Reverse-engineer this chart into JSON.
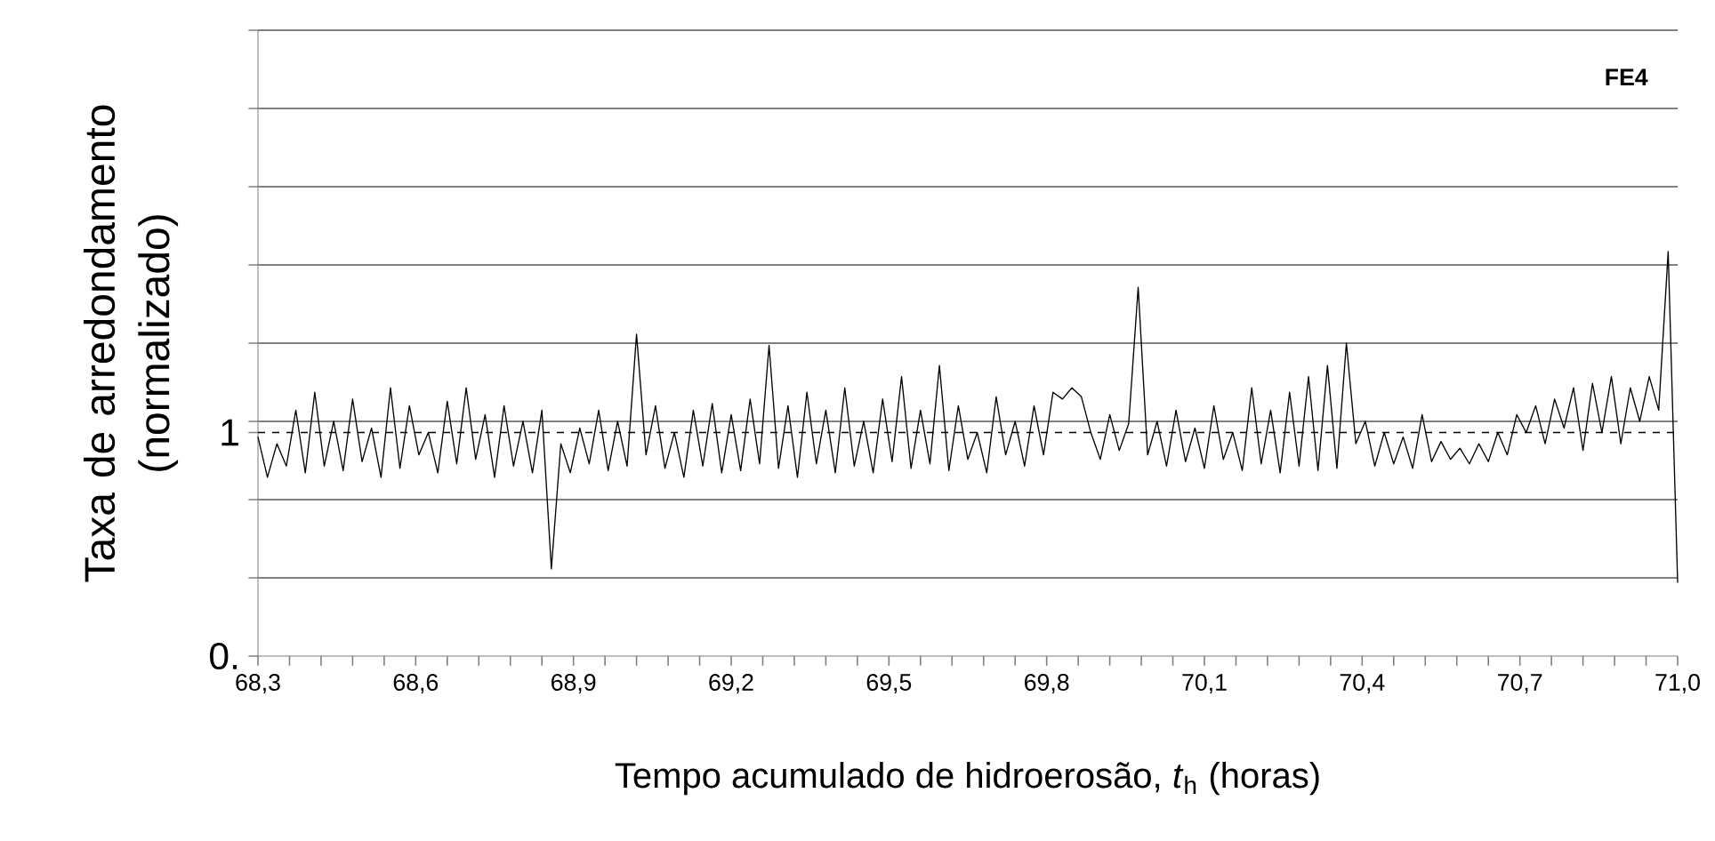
{
  "chart_data": {
    "type": "line",
    "xlabel": "Tempo acumulado de hidroerosão, *t*$_{h}$ (horas)",
    "ylabel": "Taxa de arredondamento (normalizado)",
    "annotations": [
      "FE4"
    ],
    "xlim": [
      68.3,
      71.0
    ],
    "ylim": [
      0,
      2.8
    ],
    "xticks": [
      {
        "value": 68.3,
        "label": "68,3"
      },
      {
        "value": 68.36,
        "label": null
      },
      {
        "value": 68.42,
        "label": null
      },
      {
        "value": 68.48,
        "label": null
      },
      {
        "value": 68.54,
        "label": null
      },
      {
        "value": 68.6,
        "label": "68,6"
      },
      {
        "value": 68.66,
        "label": null
      },
      {
        "value": 68.72,
        "label": null
      },
      {
        "value": 68.78,
        "label": null
      },
      {
        "value": 68.84,
        "label": null
      },
      {
        "value": 68.9,
        "label": "68,9"
      },
      {
        "value": 68.96,
        "label": null
      },
      {
        "value": 69.02,
        "label": null
      },
      {
        "value": 69.08,
        "label": null
      },
      {
        "value": 69.14,
        "label": null
      },
      {
        "value": 69.2,
        "label": "69,2"
      },
      {
        "value": 69.26,
        "label": null
      },
      {
        "value": 69.32,
        "label": null
      },
      {
        "value": 69.38,
        "label": null
      },
      {
        "value": 69.44,
        "label": null
      },
      {
        "value": 69.5,
        "label": "69,5"
      },
      {
        "value": 69.56,
        "label": null
      },
      {
        "value": 69.62,
        "label": null
      },
      {
        "value": 69.68,
        "label": null
      },
      {
        "value": 69.74,
        "label": null
      },
      {
        "value": 69.8,
        "label": "69,8"
      },
      {
        "value": 69.86,
        "label": null
      },
      {
        "value": 69.92,
        "label": null
      },
      {
        "value": 69.98,
        "label": null
      },
      {
        "value": 70.04,
        "label": null
      },
      {
        "value": 70.1,
        "label": "70,1"
      },
      {
        "value": 70.16,
        "label": null
      },
      {
        "value": 70.22,
        "label": null
      },
      {
        "value": 70.28,
        "label": null
      },
      {
        "value": 70.34,
        "label": null
      },
      {
        "value": 70.4,
        "label": "70,4"
      },
      {
        "value": 70.46,
        "label": null
      },
      {
        "value": 70.52,
        "label": null
      },
      {
        "value": 70.58,
        "label": null
      },
      {
        "value": 70.64,
        "label": null
      },
      {
        "value": 70.7,
        "label": "70,7"
      },
      {
        "value": 70.76,
        "label": null
      },
      {
        "value": 70.82,
        "label": null
      },
      {
        "value": 70.88,
        "label": null
      },
      {
        "value": 70.94,
        "label": null
      },
      {
        "value": 71.0,
        "label": "71,0"
      }
    ],
    "yticks": [
      {
        "value": 0,
        "label": "0."
      },
      {
        "value": 0.35,
        "label": null
      },
      {
        "value": 0.7,
        "label": null
      },
      {
        "value": 1,
        "label": "1"
      },
      {
        "value": 1.05,
        "label": null
      },
      {
        "value": 1.4,
        "label": null
      },
      {
        "value": 1.75,
        "label": null
      },
      {
        "value": 2.1,
        "label": null
      },
      {
        "value": 2.45,
        "label": null
      },
      {
        "value": 2.8,
        "label": null
      }
    ],
    "grid": "y",
    "marker": "none",
    "line_style": "solid",
    "ref_lines": [
      {
        "axis": "y",
        "value": 1,
        "color": "#000000",
        "line_style": "dashed"
      }
    ],
    "series": [
      {
        "color": "#000000",
        "x": [
          68.3,
          68.318,
          68.336,
          68.354,
          68.372,
          68.39,
          68.408,
          68.426,
          68.444,
          68.462,
          68.48,
          68.498,
          68.516,
          68.534,
          68.552,
          68.57,
          68.588,
          68.606,
          68.624,
          68.642,
          68.66,
          68.678,
          68.696,
          68.714,
          68.732,
          68.75,
          68.768,
          68.786,
          68.804,
          68.822,
          68.84,
          68.858,
          68.876,
          68.894,
          68.912,
          68.93,
          68.948,
          68.966,
          68.984,
          69.002,
          69.02,
          69.038,
          69.056,
          69.074,
          69.092,
          69.11,
          69.128,
          69.146,
          69.164,
          69.182,
          69.2,
          69.218,
          69.236,
          69.254,
          69.272,
          69.29,
          69.308,
          69.326,
          69.344,
          69.362,
          69.38,
          69.398,
          69.416,
          69.434,
          69.452,
          69.47,
          69.488,
          69.506,
          69.524,
          69.542,
          69.56,
          69.578,
          69.596,
          69.614,
          69.632,
          69.65,
          69.668,
          69.686,
          69.704,
          69.722,
          69.74,
          69.758,
          69.776,
          69.794,
          69.812,
          69.83,
          69.848,
          69.866,
          69.884,
          69.902,
          69.92,
          69.938,
          69.956,
          69.974,
          69.992,
          70.01,
          70.028,
          70.046,
          70.064,
          70.082,
          70.1,
          70.118,
          70.136,
          70.154,
          70.172,
          70.19,
          70.208,
          70.226,
          70.244,
          70.262,
          70.28,
          70.298,
          70.316,
          70.334,
          70.352,
          70.37,
          70.388,
          70.406,
          70.424,
          70.442,
          70.46,
          70.478,
          70.496,
          70.514,
          70.532,
          70.55,
          70.568,
          70.586,
          70.604,
          70.622,
          70.64,
          70.658,
          70.676,
          70.694,
          70.712,
          70.73,
          70.748,
          70.766,
          70.784,
          70.802,
          70.82,
          70.838,
          70.856,
          70.874,
          70.892,
          70.91,
          70.928,
          70.946,
          70.964,
          70.982,
          71.0
        ],
        "values": [
          0.98,
          0.8,
          0.95,
          0.85,
          1.1,
          0.82,
          1.18,
          0.85,
          1.05,
          0.83,
          1.15,
          0.87,
          1.02,
          0.8,
          1.2,
          0.84,
          1.12,
          0.9,
          1.0,
          0.82,
          1.14,
          0.86,
          1.2,
          0.88,
          1.08,
          0.8,
          1.12,
          0.85,
          1.05,
          0.82,
          1.1,
          0.39,
          0.95,
          0.82,
          1.02,
          0.86,
          1.1,
          0.83,
          1.05,
          0.85,
          1.44,
          0.9,
          1.12,
          0.84,
          1.0,
          0.8,
          1.1,
          0.85,
          1.13,
          0.82,
          1.08,
          0.83,
          1.15,
          0.86,
          1.39,
          0.84,
          1.12,
          0.8,
          1.18,
          0.86,
          1.1,
          0.82,
          1.2,
          0.85,
          1.05,
          0.82,
          1.15,
          0.87,
          1.25,
          0.84,
          1.1,
          0.86,
          1.3,
          0.83,
          1.12,
          0.88,
          1.0,
          0.82,
          1.16,
          0.9,
          1.05,
          0.85,
          1.12,
          0.9,
          1.18,
          1.15,
          1.2,
          1.16,
          1.0,
          0.88,
          1.08,
          0.92,
          1.04,
          1.65,
          0.9,
          1.05,
          0.85,
          1.1,
          0.87,
          1.02,
          0.84,
          1.12,
          0.88,
          1.0,
          0.83,
          1.2,
          0.86,
          1.1,
          0.82,
          1.18,
          0.85,
          1.25,
          0.83,
          1.3,
          0.84,
          1.4,
          0.95,
          1.05,
          0.85,
          1.0,
          0.86,
          0.98,
          0.84,
          1.08,
          0.87,
          0.96,
          0.88,
          0.93,
          0.86,
          0.95,
          0.87,
          1.0,
          0.9,
          1.08,
          1.0,
          1.12,
          0.95,
          1.15,
          1.02,
          1.2,
          0.92,
          1.22,
          1.0,
          1.25,
          0.95,
          1.2,
          1.05,
          1.25,
          1.1,
          1.81,
          0.33
        ]
      }
    ]
  }
}
